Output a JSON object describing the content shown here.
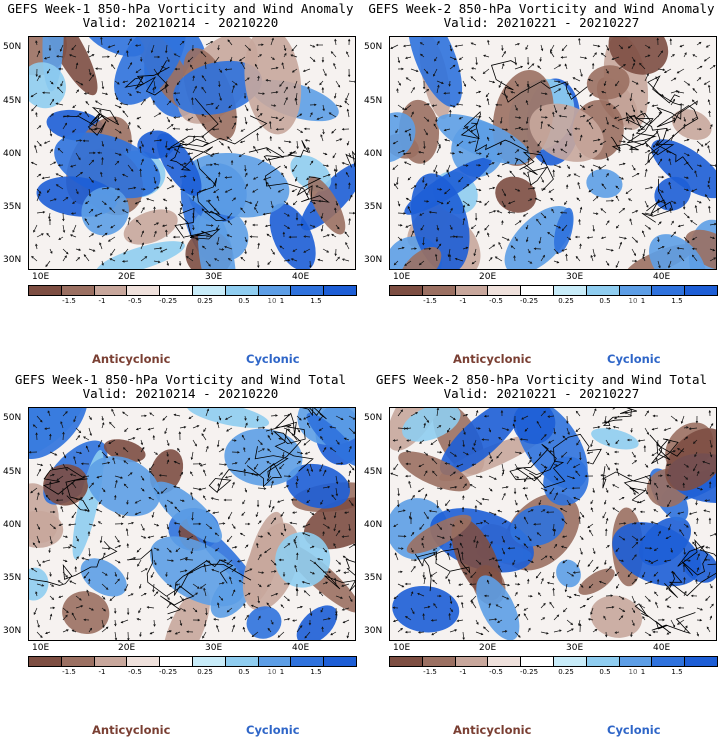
{
  "panels": [
    {
      "title": "GEFS Week-1 850-hPa Vorticity and Wind Anomaly",
      "valid": "Valid: 20210214 - 20210220"
    },
    {
      "title": "GEFS Week-2 850-hPa Vorticity and Wind Anomaly",
      "valid": "Valid: 20210221 - 20210227"
    },
    {
      "title": "GEFS Week-1 850-hPa Vorticity and Wind Total",
      "valid": "Valid: 20210214 - 20210220"
    },
    {
      "title": "GEFS Week-2 850-hPa Vorticity and Wind Total",
      "valid": "Valid: 20210221 - 20210227"
    }
  ],
  "lat_labels": [
    "50N",
    "45N",
    "40N",
    "35N",
    "30N"
  ],
  "lon_labels": [
    "10E",
    "20E",
    "30E",
    "40E"
  ],
  "colorbar": {
    "colors": [
      "#7d4e42",
      "#9b7062",
      "#c8a79c",
      "#efe1dc",
      "#ffffff",
      "#c8ecf9",
      "#8fcdf0",
      "#5d9ee6",
      "#2f72dd",
      "#1d5ed6"
    ],
    "labels": [
      "-1.5",
      "-1",
      "-0.5",
      "-0.25",
      "0.25",
      "0.5",
      "1",
      "1.5"
    ],
    "label_suffix": "10"
  },
  "legend": {
    "anticyclonic": "Anticyclonic",
    "cyclonic": "Cyclonic"
  },
  "colors": {
    "anticyclonic": "#7a3f33",
    "cyclonic": "#2f66c8",
    "brown_fill": "#8c6352",
    "blue_fill": "#3d7fe0"
  }
}
